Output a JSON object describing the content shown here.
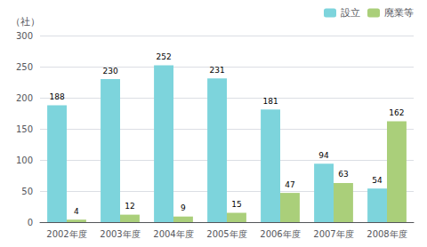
{
  "chart_data": {
    "type": "bar",
    "ylabel": "（社）",
    "categories": [
      "2002年度",
      "2003年度",
      "2004年度",
      "2005年度",
      "2006年度",
      "2007年度",
      "2008年度"
    ],
    "series": [
      {
        "name": "設立",
        "color": "#7DD4DC",
        "values": [
          188,
          230,
          252,
          231,
          181,
          94,
          54
        ]
      },
      {
        "name": "廃業等",
        "color": "#AACF7A",
        "values": [
          4,
          12,
          9,
          15,
          47,
          63,
          162
        ]
      }
    ],
    "ylim": [
      0,
      300
    ],
    "yticks": [
      0,
      50,
      100,
      150,
      200,
      250,
      300
    ],
    "grid": true,
    "legend": "upper right",
    "data_labels": true
  }
}
